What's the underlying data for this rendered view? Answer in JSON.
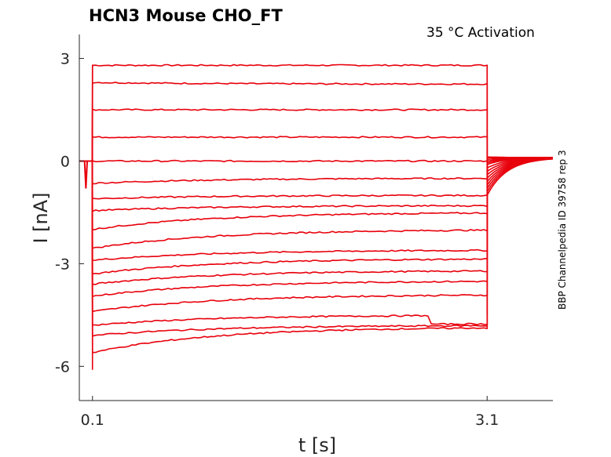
{
  "chart_data": {
    "type": "line",
    "title": "HCN3  Mouse  CHO_FT",
    "subtitle": "35 °C  Activation",
    "side_label": "BBP Channelpedia ID 39758 rep 3",
    "xlabel": "t [s]",
    "ylabel": "I [nA]",
    "xlim": [
      0.0,
      3.6
    ],
    "ylim": [
      -7.0,
      3.7
    ],
    "xticks": [
      {
        "value": 0.1,
        "label": "0.1"
      },
      {
        "value": 3.1,
        "label": "3.1"
      }
    ],
    "yticks": [
      {
        "value": 3,
        "label": "3"
      },
      {
        "value": 0,
        "label": "0"
      },
      {
        "value": -3,
        "label": "-3"
      },
      {
        "value": -6,
        "label": "-6"
      }
    ],
    "grid": false,
    "line_color": "#e8000b",
    "step_start": 0.1,
    "step_end": 3.1,
    "prepulse": {
      "t_start": 0.04,
      "t_end": 0.06,
      "min_current": -0.8
    },
    "series": [
      {
        "start": 2.8,
        "end": 2.8,
        "tail": 0.1
      },
      {
        "start": 2.3,
        "end": 2.25,
        "tail": 0.1
      },
      {
        "start": 1.5,
        "end": 1.5,
        "tail": 0.12
      },
      {
        "start": 0.7,
        "end": 0.7,
        "tail": 0.12
      },
      {
        "start": 0.0,
        "end": 0.0,
        "tail": 0.1
      },
      {
        "start": -0.65,
        "end": -0.5,
        "tail": 0.05
      },
      {
        "start": -1.1,
        "end": -1.0,
        "tail": 0.0
      },
      {
        "start": -1.45,
        "end": -1.3,
        "tail": -0.05
      },
      {
        "start": -2.0,
        "end": -1.5,
        "tail": -0.1
      },
      {
        "start": -2.55,
        "end": -2.0,
        "tail": -0.2
      },
      {
        "start": -2.9,
        "end": -2.6,
        "tail": -0.3
      },
      {
        "start": -3.3,
        "end": -2.85,
        "tail": -0.4
      },
      {
        "start": -3.6,
        "end": -3.2,
        "tail": -0.5
      },
      {
        "start": -3.95,
        "end": -3.5,
        "tail": -0.6
      },
      {
        "start": -4.4,
        "end": -3.9,
        "tail": -0.7
      },
      {
        "start": -4.8,
        "end": -4.5,
        "tail": -0.8,
        "kink": true
      },
      {
        "start": -5.1,
        "end": -4.8,
        "tail": -0.9
      },
      {
        "start": -5.6,
        "end": -4.85,
        "tail": -1.0
      }
    ]
  }
}
